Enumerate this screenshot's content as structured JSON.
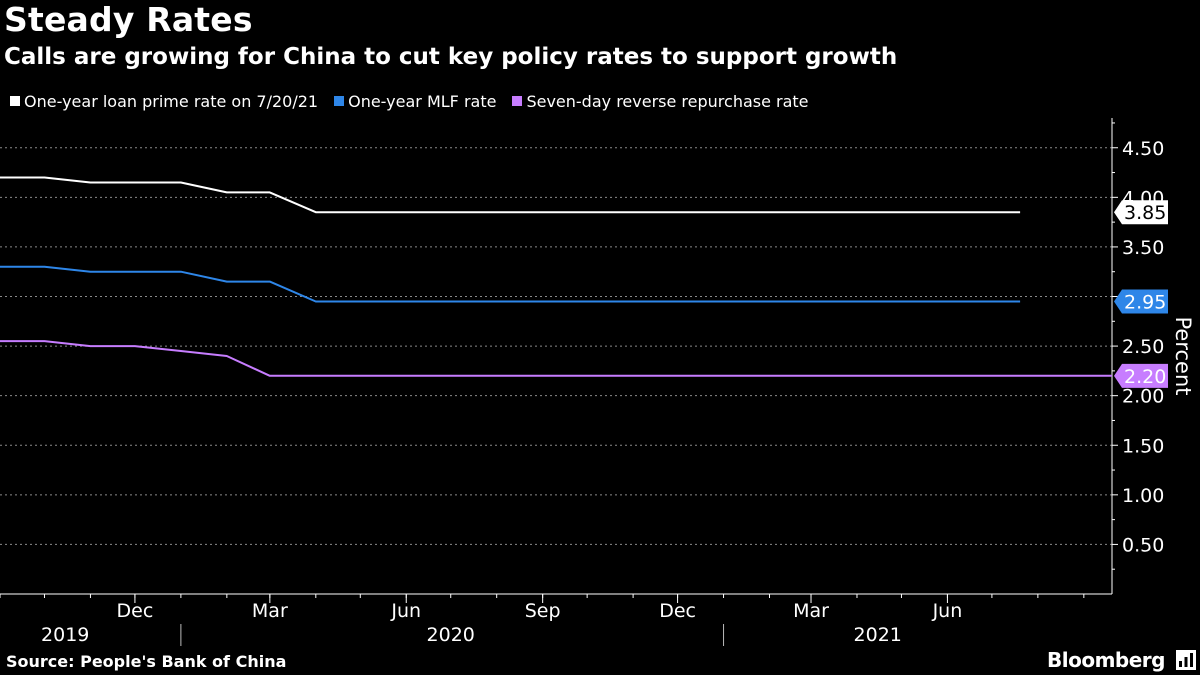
{
  "header": {
    "title": "Steady Rates",
    "subtitle": "Calls are growing for China to cut key policy rates to support growth"
  },
  "footer": {
    "source": "Source: People's Bank of China",
    "brand": "Bloomberg"
  },
  "colors": {
    "background": "#000000",
    "lpr": "#ffffff",
    "mlf": "#2e86e8",
    "reverse_repo": "#c77dff",
    "grid": "#8a8a8a"
  },
  "chart_data": {
    "type": "line",
    "title": "Steady Rates",
    "subtitle": "Calls are growing for China to cut key policy rates to support growth",
    "ylabel": "Percent",
    "ylim": [
      0,
      4.8
    ],
    "yticks": [
      "4.50",
      "4.00",
      "3.50",
      "3.00",
      "2.50",
      "2.00",
      "1.50",
      "1.00",
      "0.50"
    ],
    "y_axis_side": "right",
    "xlim": [
      "2019-09-01",
      "2021-09-20"
    ],
    "xticks": [
      {
        "label": "Dec",
        "date": "2019-12-01"
      },
      {
        "label": "Mar",
        "date": "2020-03-01"
      },
      {
        "label": "Jun",
        "date": "2020-06-01"
      },
      {
        "label": "Sep",
        "date": "2020-09-01"
      },
      {
        "label": "Dec",
        "date": "2020-12-01"
      },
      {
        "label": "Mar",
        "date": "2021-03-01"
      },
      {
        "label": "Jun",
        "date": "2021-06-01"
      }
    ],
    "year_labels": [
      {
        "label": "2019",
        "date": "2019-10-15"
      },
      {
        "label": "2020",
        "date": "2020-07-01"
      },
      {
        "label": "2021",
        "date": "2021-04-15"
      }
    ],
    "year_dividers": [
      "2020-01-01",
      "2021-01-01"
    ],
    "grid": true,
    "legend_position": "top-left",
    "series": [
      {
        "name": "One-year loan prime rate on 7/20/21",
        "color": "#ffffff",
        "end_label": "3.85",
        "points": [
          [
            "2019-09-01",
            4.2
          ],
          [
            "2019-10-01",
            4.2
          ],
          [
            "2019-11-01",
            4.15
          ],
          [
            "2019-12-01",
            4.15
          ],
          [
            "2020-01-01",
            4.15
          ],
          [
            "2020-02-01",
            4.05
          ],
          [
            "2020-03-01",
            4.05
          ],
          [
            "2020-04-01",
            3.85
          ],
          [
            "2021-07-20",
            3.85
          ]
        ]
      },
      {
        "name": "One-year MLF rate",
        "color": "#2e86e8",
        "end_label": "2.95",
        "points": [
          [
            "2019-09-01",
            3.3
          ],
          [
            "2019-10-01",
            3.3
          ],
          [
            "2019-11-01",
            3.25
          ],
          [
            "2019-12-01",
            3.25
          ],
          [
            "2020-01-01",
            3.25
          ],
          [
            "2020-02-01",
            3.15
          ],
          [
            "2020-03-01",
            3.15
          ],
          [
            "2020-04-01",
            2.95
          ],
          [
            "2021-07-20",
            2.95
          ]
        ]
      },
      {
        "name": "Seven-day reverse repurchase rate",
        "color": "#c77dff",
        "end_label": "2.20",
        "points": [
          [
            "2019-09-01",
            2.55
          ],
          [
            "2019-10-01",
            2.55
          ],
          [
            "2019-11-01",
            2.5
          ],
          [
            "2019-12-01",
            2.5
          ],
          [
            "2020-01-01",
            2.45
          ],
          [
            "2020-02-01",
            2.4
          ],
          [
            "2020-03-01",
            2.2
          ],
          [
            "2021-09-20",
            2.2
          ]
        ]
      }
    ]
  }
}
